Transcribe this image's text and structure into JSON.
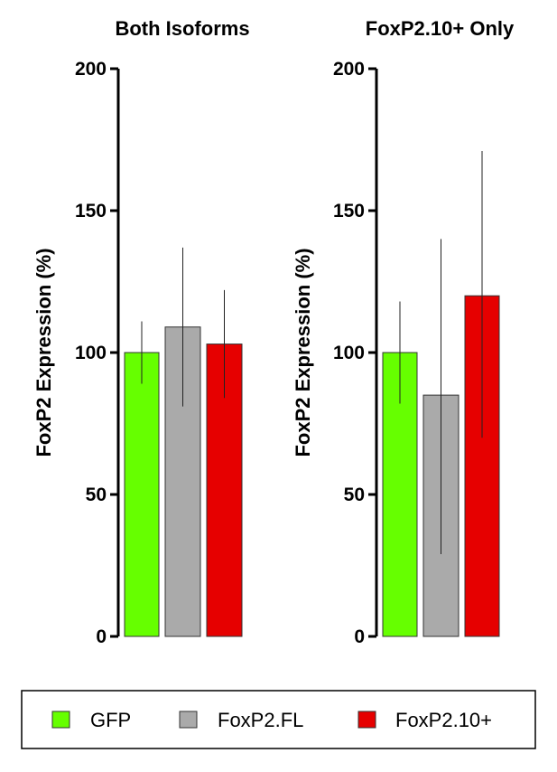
{
  "chart_data": [
    {
      "type": "bar",
      "title": "Both Isoforms",
      "ylabel": "FoxP2 Expression (%)",
      "xlabel": "",
      "ylim": [
        0,
        200
      ],
      "yticks": [
        "0",
        "50",
        "100",
        "150",
        "200"
      ],
      "categories": [
        "GFP",
        "FoxP2.FL",
        "FoxP2.10+"
      ],
      "values": [
        100,
        109,
        103
      ],
      "error_low": [
        89,
        81,
        84
      ],
      "error_high": [
        111,
        137,
        122
      ],
      "colors": [
        "#66ff00",
        "#aaaaaa",
        "#e60000"
      ],
      "grid": false
    },
    {
      "type": "bar",
      "title": "FoxP2.10+ Only",
      "ylabel": "FoxP2 Expression (%)",
      "xlabel": "",
      "ylim": [
        0,
        200
      ],
      "yticks": [
        "0",
        "50",
        "100",
        "150",
        "200"
      ],
      "categories": [
        "GFP",
        "FoxP2.FL",
        "FoxP2.10+"
      ],
      "values": [
        100,
        85,
        120
      ],
      "error_low": [
        82,
        29,
        70
      ],
      "error_high": [
        118,
        140,
        171
      ],
      "colors": [
        "#66ff00",
        "#aaaaaa",
        "#e60000"
      ],
      "grid": false
    }
  ],
  "legend": {
    "placement": "bottom",
    "items": [
      {
        "label": "GFP",
        "color": "#66ff00"
      },
      {
        "label": "FoxP2.FL",
        "color": "#aaaaaa"
      },
      {
        "label": "FoxP2.10+",
        "color": "#e60000"
      }
    ]
  }
}
